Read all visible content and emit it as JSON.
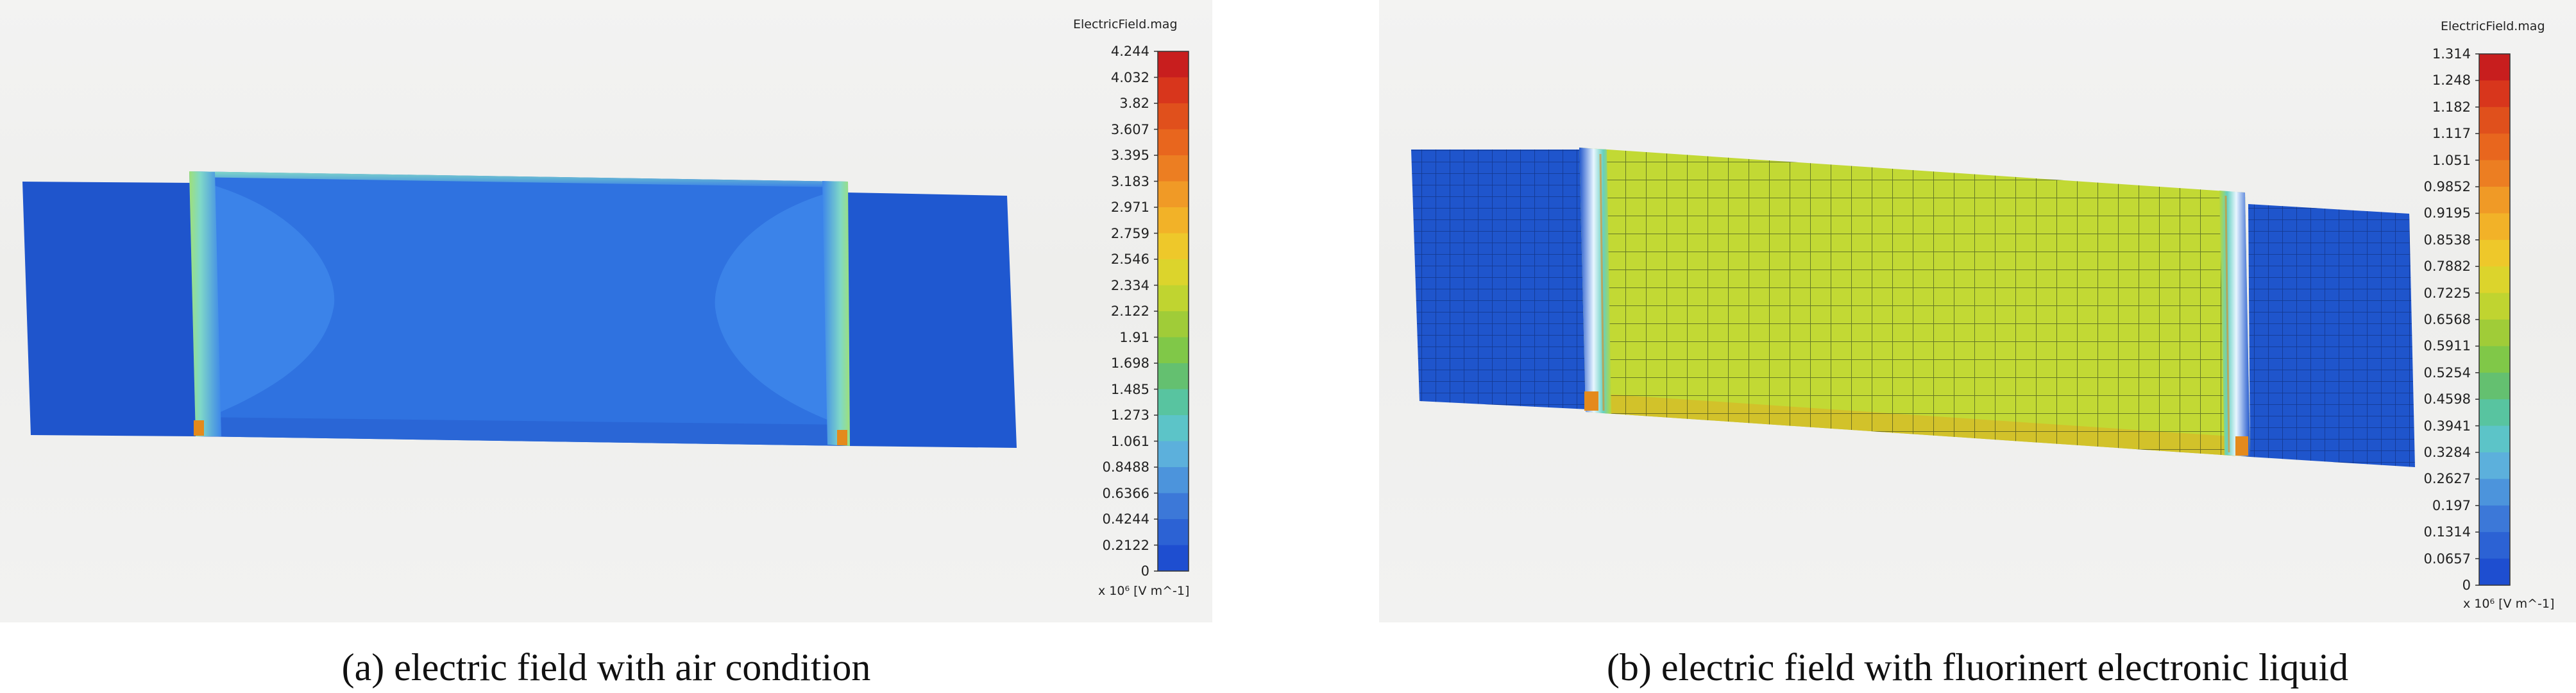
{
  "panels": [
    {
      "id": "a",
      "caption": "(a) electric field with air condition",
      "colorbar": {
        "title": "ElectricField.mag",
        "unit_label": "x 10⁶ [V m^-1]",
        "ticks": [
          "4.244",
          "4.032",
          "3.82",
          "3.607",
          "3.395",
          "3.183",
          "2.971",
          "2.759",
          "2.546",
          "2.334",
          "2.122",
          "1.91",
          "1.698",
          "1.485",
          "1.273",
          "1.061",
          "0.8488",
          "0.6366",
          "0.4244",
          "0.2122",
          "0"
        ]
      }
    },
    {
      "id": "b",
      "caption": "(b) electric field with fluorinert electronic liquid",
      "colorbar": {
        "title": "ElectricField.mag",
        "unit_label": "x 10⁶ [V m^-1]",
        "ticks": [
          "1.314",
          "1.248",
          "1.182",
          "1.117",
          "1.051",
          "0.9852",
          "0.9195",
          "0.8538",
          "0.7882",
          "0.7225",
          "0.6568",
          "0.5911",
          "0.5254",
          "0.4598",
          "0.3941",
          "0.3284",
          "0.2627",
          "0.197",
          "0.1314",
          "0.0657",
          "0"
        ]
      }
    }
  ],
  "colorbar_colors": [
    "#c81e1e",
    "#d8361c",
    "#e0501c",
    "#e8661e",
    "#ec7e22",
    "#f09a26",
    "#f2b228",
    "#eec82a",
    "#dcd42c",
    "#c0d430",
    "#a0cc38",
    "#80c848",
    "#64c070",
    "#58c4a0",
    "#5cc4c8",
    "#5cb0dc",
    "#4c94dc",
    "#3c78d8",
    "#2c62d4",
    "#1e4ed0"
  ],
  "field_colors": {
    "deep_blue": "#1f55cc",
    "mid_blue": "#2f72e0",
    "light_blue": "#3d86ea",
    "cyan_edge": "#7fd8c8",
    "green_edge": "#8ee07a",
    "yellow_green": "#c2d934",
    "orange": "#e48a1c"
  }
}
